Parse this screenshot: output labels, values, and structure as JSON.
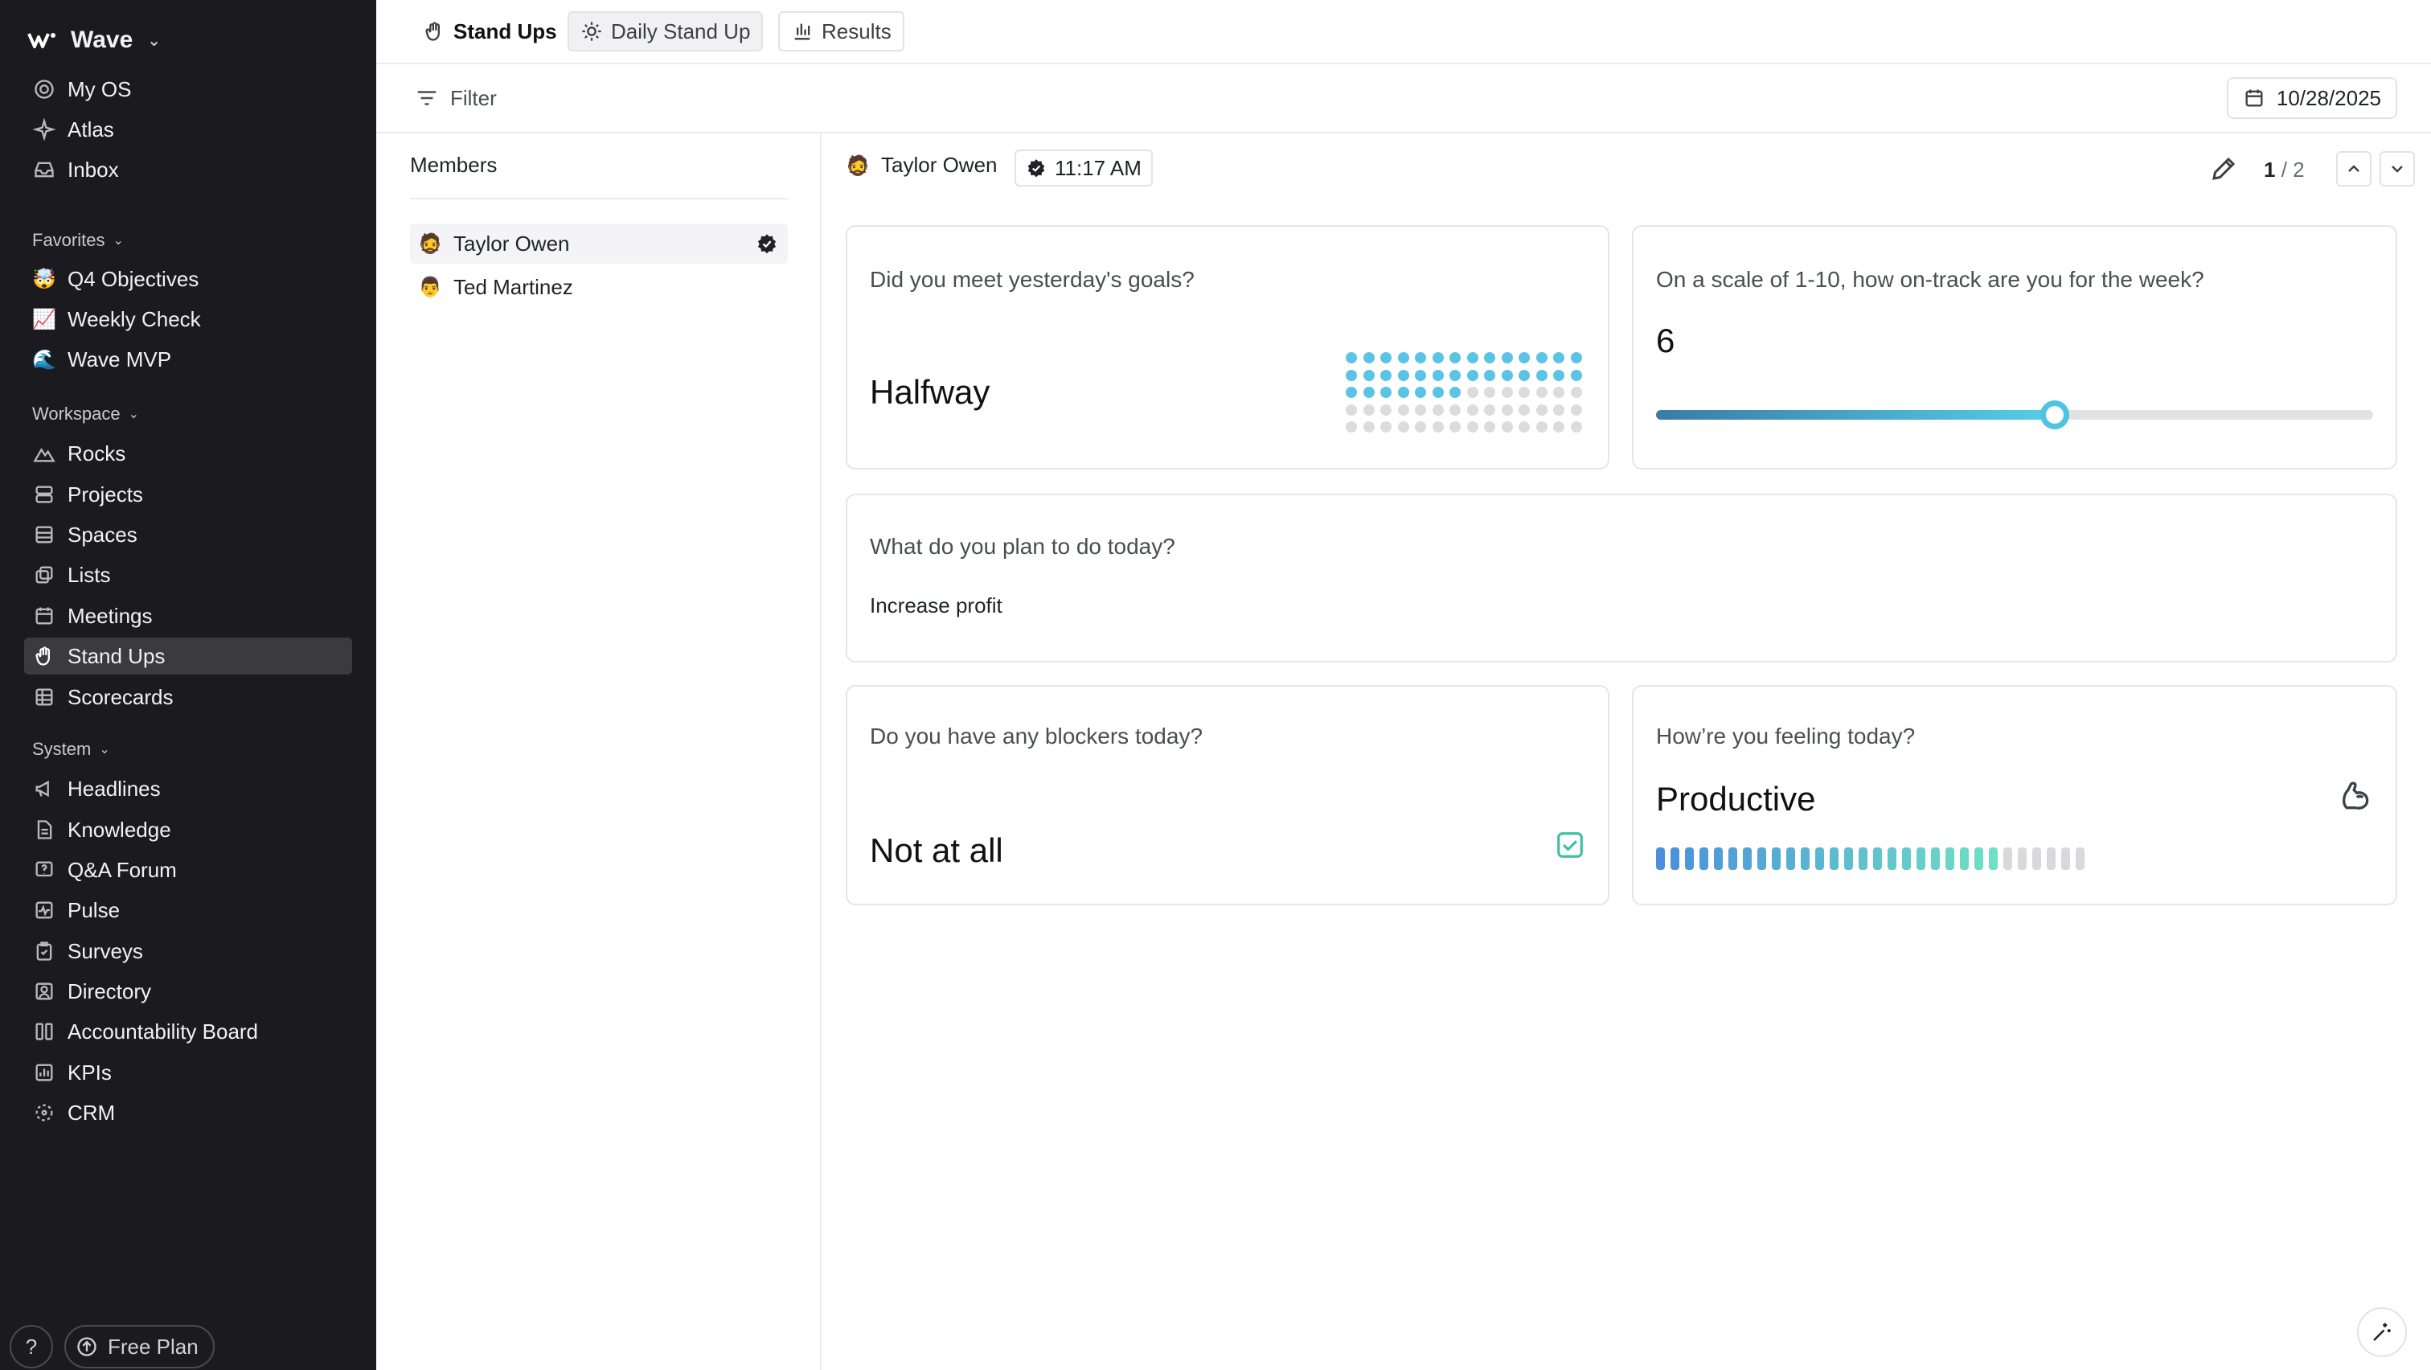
{
  "workspace": {
    "name": "Wave",
    "logo_icon": "wave-logo-icon"
  },
  "sidebar": {
    "top_items": [
      {
        "label": "My OS",
        "icon": "target-icon"
      },
      {
        "label": "Atlas",
        "icon": "sparkle-icon"
      },
      {
        "label": "Inbox",
        "icon": "inbox-icon"
      }
    ],
    "favorites_label": "Favorites",
    "favorites": [
      {
        "label": "Q4 Objectives",
        "emoji": "🤯"
      },
      {
        "label": "Weekly Check",
        "emoji": "📈"
      },
      {
        "label": "Wave MVP",
        "emoji": "🌊"
      }
    ],
    "workspace_label": "Workspace",
    "workspace_items": [
      {
        "label": "Rocks",
        "icon": "mountain-icon"
      },
      {
        "label": "Projects",
        "icon": "projects-icon"
      },
      {
        "label": "Spaces",
        "icon": "spaces-icon"
      },
      {
        "label": "Lists",
        "icon": "lists-icon"
      },
      {
        "label": "Meetings",
        "icon": "calendar-icon"
      },
      {
        "label": "Stand Ups",
        "icon": "hand-icon",
        "active": true
      },
      {
        "label": "Scorecards",
        "icon": "grid-icon"
      }
    ],
    "system_label": "System",
    "system_items": [
      {
        "label": "Headlines",
        "icon": "megaphone-icon"
      },
      {
        "label": "Knowledge",
        "icon": "document-icon"
      },
      {
        "label": "Q&A Forum",
        "icon": "question-icon"
      },
      {
        "label": "Pulse",
        "icon": "pulse-icon"
      },
      {
        "label": "Surveys",
        "icon": "clipboard-icon"
      },
      {
        "label": "Directory",
        "icon": "person-card-icon"
      },
      {
        "label": "Accountability Board",
        "icon": "columns-icon"
      },
      {
        "label": "KPIs",
        "icon": "chart-icon"
      },
      {
        "label": "CRM",
        "icon": "crm-icon"
      }
    ],
    "help_label": "?",
    "plan_label": "Free Plan"
  },
  "tabs": {
    "standups": "Stand Ups",
    "daily": "Daily Stand Up",
    "results": "Results"
  },
  "filter": {
    "label": "Filter",
    "date": "10/28/2025"
  },
  "members": {
    "title": "Members",
    "list": [
      {
        "name": "Taylor Owen",
        "emoji": "🧔",
        "selected": true,
        "verified": true
      },
      {
        "name": "Ted Martinez",
        "emoji": "👨",
        "selected": false,
        "verified": false
      }
    ]
  },
  "detail": {
    "name": "Taylor Owen",
    "emoji": "🧔",
    "time": "11:17 AM",
    "page_current": "1",
    "page_total": "/ 2",
    "cards": {
      "goals": {
        "question": "Did you meet yesterday's goals?",
        "answer": "Halfway",
        "filled_fraction": 0.5
      },
      "track": {
        "question": "On a scale of 1-10, how on-track are you for the week?",
        "value": "6",
        "fraction": 0.556
      },
      "plan": {
        "question": "What do you plan to do today?",
        "answer": "Increase profit"
      },
      "blockers": {
        "question": "Do you have any blockers today?",
        "answer": "Not at all"
      },
      "feeling": {
        "question": "How’re you feeling today?",
        "answer": "Productive",
        "filled_bars": 24,
        "total_bars": 30
      }
    }
  },
  "colors": {
    "sidebar_bg": "#1b1b1f",
    "accent": "#4fc3e0",
    "dot_filled": "#5bc4e6",
    "dot_empty": "#dcdce0",
    "check": "#3fbfa3"
  }
}
